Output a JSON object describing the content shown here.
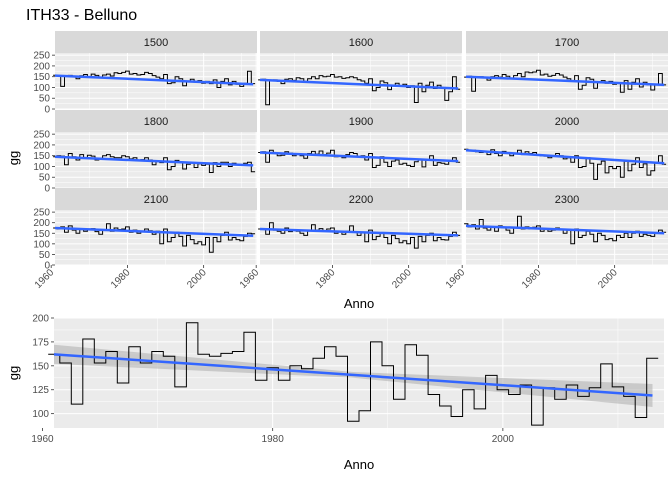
{
  "chart_data": {
    "title": "ITH33 - Belluno",
    "type": "line",
    "style": "step",
    "colors": {
      "trend": "#3366ff",
      "line": "#000000",
      "band": "#b3b3b3",
      "strip": "#d9d9d9",
      "panel": "#ebebeb"
    },
    "facets": {
      "type": "line",
      "xlabel": "Anno",
      "ylabel": "gg",
      "xlim": [
        1961,
        2014
      ],
      "ylim": [
        0,
        260
      ],
      "x_ticks": [
        1960,
        1980,
        2000
      ],
      "y_ticks": [
        0,
        50,
        100,
        150,
        200,
        250
      ],
      "x_tick_labels": [
        "1960",
        "1980",
        "2000"
      ],
      "y_tick_labels": [
        "0",
        "50",
        "100",
        "150",
        "200",
        "250"
      ],
      "panels": [
        {
          "name": "1500",
          "trend": [
            1961,
            155,
            2013,
            115
          ],
          "values": [
            157,
            155,
            105,
            151,
            156,
            150,
            140,
            154,
            160,
            151,
            162,
            156,
            145,
            158,
            162,
            153,
            168,
            165,
            170,
            176,
            162,
            165,
            158,
            160,
            170,
            165,
            155,
            148,
            140,
            160,
            118,
            122,
            150,
            140,
            108,
            130,
            138,
            125,
            132,
            120,
            128,
            118,
            135,
            100,
            128,
            140,
            112,
            128,
            115,
            105,
            120,
            175,
            118
          ]
        },
        {
          "name": "1600",
          "trend": [
            1961,
            135,
            2013,
            95
          ],
          "values": [
            135,
            138,
            20,
            130,
            135,
            128,
            118,
            138,
            140,
            133,
            145,
            140,
            128,
            140,
            150,
            140,
            155,
            150,
            152,
            160,
            148,
            150,
            142,
            145,
            150,
            145,
            136,
            130,
            120,
            140,
            85,
            100,
            130,
            122,
            90,
            110,
            120,
            105,
            115,
            100,
            108,
            30,
            120,
            80,
            110,
            125,
            95,
            110,
            100,
            40,
            80,
            150,
            92
          ]
        },
        {
          "name": "1700",
          "trend": [
            1961,
            150,
            2013,
            112
          ],
          "values": [
            148,
            152,
            82,
            150,
            150,
            145,
            134,
            150,
            155,
            148,
            160,
            152,
            140,
            155,
            165,
            150,
            172,
            168,
            172,
            180,
            158,
            162,
            152,
            156,
            165,
            158,
            148,
            140,
            132,
            155,
            92,
            110,
            145,
            138,
            96,
            122,
            132,
            120,
            128,
            115,
            122,
            78,
            132,
            92,
            124,
            140,
            102,
            124,
            112,
            88,
            112,
            165,
            112
          ]
        },
        {
          "name": "1800",
          "trend": [
            1961,
            145,
            2013,
            105
          ],
          "values": [
            145,
            150,
            148,
            108,
            160,
            145,
            130,
            155,
            140,
            152,
            148,
            130,
            138,
            150,
            155,
            145,
            140,
            140,
            150,
            145,
            135,
            140,
            128,
            132,
            140,
            130,
            108,
            125,
            118,
            140,
            85,
            100,
            128,
            120,
            88,
            110,
            118,
            95,
            112,
            105,
            110,
            72,
            118,
            100,
            120,
            120,
            100,
            115,
            108,
            105,
            115,
            120,
            75
          ]
        },
        {
          "name": "1900",
          "trend": [
            1961,
            165,
            2013,
            125
          ],
          "values": [
            165,
            168,
            120,
            175,
            160,
            150,
            152,
            168,
            162,
            150,
            160,
            150,
            138,
            160,
            170,
            158,
            172,
            155,
            162,
            175,
            145,
            150,
            140,
            155,
            165,
            160,
            145,
            150,
            130,
            160,
            95,
            105,
            145,
            120,
            100,
            125,
            130,
            110,
            115,
            105,
            100,
            122,
            130,
            98,
            130,
            150,
            105,
            118,
            115,
            110,
            125,
            140,
            120
          ]
        },
        {
          "name": "2000",
          "trend": [
            1961,
            175,
            2013,
            115
          ],
          "values": [
            180,
            172,
            175,
            168,
            165,
            172,
            155,
            178,
            160,
            150,
            170,
            165,
            150,
            160,
            175,
            155,
            168,
            160,
            165,
            155,
            150,
            148,
            140,
            150,
            160,
            150,
            135,
            140,
            120,
            150,
            95,
            100,
            140,
            115,
            40,
            110,
            125,
            70,
            100,
            90,
            100,
            50,
            125,
            80,
            110,
            140,
            95,
            112,
            60,
            80,
            120,
            150,
            110
          ]
        },
        {
          "name": "2100",
          "trend": [
            1961,
            175,
            2013,
            138
          ],
          "values": [
            175,
            170,
            180,
            155,
            185,
            165,
            150,
            168,
            160,
            170,
            172,
            158,
            145,
            165,
            195,
            160,
            175,
            168,
            170,
            180,
            155,
            165,
            150,
            158,
            170,
            162,
            145,
            160,
            100,
            170,
            110,
            130,
            155,
            135,
            90,
            140,
            120,
            100,
            110,
            95,
            130,
            60,
            130,
            110,
            140,
            155,
            118,
            130,
            120,
            115,
            135,
            150,
            148
          ]
        },
        {
          "name": "2200",
          "trend": [
            1961,
            170,
            2013,
            140
          ],
          "values": [
            170,
            172,
            145,
            200,
            165,
            160,
            150,
            175,
            158,
            168,
            160,
            150,
            140,
            165,
            190,
            165,
            172,
            160,
            170,
            175,
            150,
            160,
            145,
            160,
            185,
            158,
            140,
            155,
            110,
            165,
            120,
            135,
            150,
            130,
            100,
            140,
            125,
            105,
            115,
            100,
            130,
            80,
            135,
            110,
            140,
            150,
            115,
            130,
            120,
            118,
            135,
            155,
            140
          ]
        },
        {
          "name": "2300",
          "trend": [
            1961,
            185,
            2013,
            150
          ],
          "values": [
            195,
            180,
            190,
            170,
            215,
            175,
            165,
            182,
            160,
            185,
            175,
            165,
            150,
            175,
            230,
            170,
            180,
            170,
            178,
            185,
            160,
            170,
            160,
            165,
            175,
            168,
            150,
            165,
            100,
            170,
            130,
            140,
            160,
            145,
            110,
            150,
            140,
            120,
            125,
            115,
            140,
            130,
            150,
            130,
            150,
            160,
            135,
            145,
            140,
            135,
            150,
            165,
            155
          ]
        }
      ]
    },
    "bottom": {
      "type": "line",
      "xlabel": "Anno",
      "ylabel": "gg",
      "xlim": [
        1961,
        2014
      ],
      "ylim": [
        85,
        200
      ],
      "x_ticks": [
        1960,
        1980,
        2000
      ],
      "y_ticks": [
        100,
        125,
        150,
        175,
        200
      ],
      "x_tick_labels": [
        "1960",
        "1980",
        "2000"
      ],
      "y_tick_labels": [
        "100",
        "125",
        "150",
        "175",
        "200"
      ],
      "trend": [
        1961,
        162,
        2013,
        119
      ],
      "band_halfwidth": [
        10,
        3,
        12
      ],
      "values": [
        162,
        153,
        110,
        178,
        153,
        165,
        132,
        170,
        153,
        165,
        160,
        128,
        195,
        162,
        160,
        163,
        165,
        185,
        135,
        148,
        135,
        150,
        147,
        158,
        170,
        160,
        92,
        103,
        175,
        150,
        115,
        172,
        161,
        120,
        108,
        97,
        125,
        105,
        140,
        125,
        120,
        130,
        88,
        127,
        115,
        130,
        118,
        127,
        152,
        128,
        118,
        96,
        158
      ]
    }
  }
}
